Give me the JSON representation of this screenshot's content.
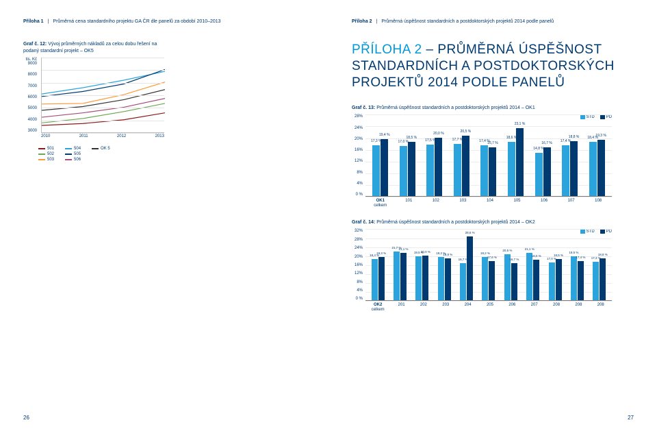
{
  "colors": {
    "brand_dark": "#003a70",
    "brand_blue": "#0099d8",
    "std_bar": "#2ba3dd",
    "pd_bar": "#003a70",
    "grid": "#ececec"
  },
  "left_page": {
    "header_bold": "Příloha 1",
    "header_text": "Průměrná cena standardního projektu GA ČR dle panelů za období 2010–2013",
    "page_number": "26",
    "graf12": {
      "label_bold": "Graf č. 12:",
      "label_rest": "Vývoj průměrných nákladů za celou dobu řešení na",
      "label_line2": "podaný standardní projekt – OK5",
      "y_unit": "tis. Kč",
      "y_ticks": [
        "9000",
        "8000",
        "7000",
        "6000",
        "5000",
        "4000",
        "3000"
      ],
      "x_ticks": [
        "2010",
        "2011",
        "2012",
        "2013"
      ],
      "ylim": [
        3000,
        9000
      ],
      "series": [
        {
          "name": "501",
          "color": "#8b1a1a",
          "values": [
            3600,
            3750,
            4050,
            4600
          ]
        },
        {
          "name": "502",
          "color": "#6aa84f",
          "values": [
            3800,
            4150,
            4700,
            5350
          ]
        },
        {
          "name": "503",
          "color": "#ff9933",
          "values": [
            5300,
            5350,
            6050,
            7050
          ]
        },
        {
          "name": "504",
          "color": "#2ba3dd",
          "values": [
            6100,
            6600,
            7200,
            7900
          ]
        },
        {
          "name": "505",
          "color": "#003a70",
          "values": [
            5900,
            6300,
            6900,
            8050
          ]
        },
        {
          "name": "506",
          "color": "#a64d79",
          "values": [
            4250,
            4600,
            5050,
            5750
          ]
        },
        {
          "name": "OK 5",
          "color": "#333333",
          "values": [
            4800,
            5100,
            5650,
            6450
          ]
        }
      ],
      "legend_cols": [
        [
          "501",
          "502",
          "503"
        ],
        [
          "504",
          "505",
          "506"
        ],
        [
          "OK 5"
        ]
      ]
    }
  },
  "right_page": {
    "header_bold": "Příloha 2",
    "header_text": "Průměrná úspěšnost standardních a postdoktorských projektů 2014 podle panelů",
    "page_number": "27",
    "big_title_accent": "PŘÍLOHA 2",
    "big_title_rest_1": " – PRŮMĚRNÁ ÚSPĚŠNOST",
    "big_title_rest_2": "STANDARDNÍCH A POSTDOKTORSKÝCH",
    "big_title_rest_3": "PROJEKTŮ 2014 PODLE PANELŮ",
    "legend": {
      "std": "STD",
      "pd": "PD"
    },
    "chart13": {
      "title_bold": "Graf č. 13:",
      "title_rest": "Průměrná úspěšnost standardních a postdoktorských projektů 2014 – OK1",
      "y_ticks": [
        "28%",
        "24%",
        "20%",
        "16%",
        "12%",
        "8%",
        "4%",
        "0 %"
      ],
      "ymax": 28,
      "x_first_line1": "OK1",
      "x_first_line2": "celkem",
      "categories": [
        "101",
        "102",
        "103",
        "104",
        "105",
        "106",
        "107",
        "108"
      ],
      "data": [
        {
          "label": "OK1 celkem",
          "std": 17.3,
          "pd": 19.4
        },
        {
          "label": "101",
          "std": 17.0,
          "pd": 18.5
        },
        {
          "label": "102",
          "std": 17.5,
          "pd": 20.0
        },
        {
          "label": "103",
          "std": 17.7,
          "pd": 20.5
        },
        {
          "label": "104",
          "std": 17.4,
          "pd": 16.7
        },
        {
          "label": "105",
          "std": 18.6,
          "pd": 23.1
        },
        {
          "label": "106",
          "std": 14.8,
          "pd": 16.7
        },
        {
          "label": "107",
          "std": 17.4,
          "pd": 18.8
        },
        {
          "label": "108",
          "std": 18.4,
          "pd": 19.3
        }
      ]
    },
    "chart14": {
      "title_bold": "Graf č. 14:",
      "title_rest": "Průměrná úspěšnost standardních a postdoktorských projektů 2014 – OK2",
      "y_ticks": [
        "32%",
        "28%",
        "24%",
        "20%",
        "16%",
        "12%",
        "8%",
        "4%",
        "0 %"
      ],
      "ymax": 32,
      "x_first_line1": "OK2",
      "x_first_line2": "celkem",
      "categories": [
        "201",
        "202",
        "203",
        "204",
        "205",
        "206",
        "207",
        "208",
        "208",
        "208"
      ],
      "data": [
        {
          "label": "OK2 celkem",
          "std": 18.4,
          "pd": 19.3
        },
        {
          "label": "201",
          "std": 21.7,
          "pd": 21.1
        },
        {
          "label": "202",
          "std": 19.5,
          "pd": 20.0
        },
        {
          "label": "203",
          "std": 19.2,
          "pd": 18.8
        },
        {
          "label": "204",
          "std": 16.7,
          "pd": 28.6
        },
        {
          "label": "205",
          "std": 19.2,
          "pd": 17.6
        },
        {
          "label": "206",
          "std": 20.5,
          "pd": 16.7
        },
        {
          "label": "207",
          "std": 21.1,
          "pd": 18.0
        },
        {
          "label": "208",
          "std": 17.0,
          "pd": 18.5
        },
        {
          "label": "208",
          "std": 19.5,
          "pd": 17.4
        },
        {
          "label": "208",
          "std": 17.3,
          "pd": 18.8
        }
      ]
    }
  }
}
